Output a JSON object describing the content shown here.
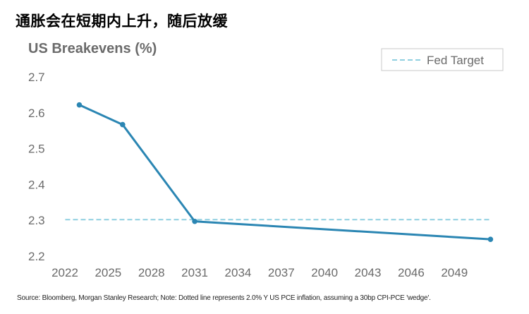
{
  "headline": "通胀会在短期内上升，随后放缓",
  "source_note": "Source: Bloomberg, Morgan Stanley Research; Note: Dotted line represents 2.0% Y US PCE inflation, assuming a 30bp CPI-PCE 'wedge'.",
  "colors": {
    "series": "#2b86b3",
    "fed_target": "#8fcfe0",
    "axis_text": "#6b6b6b",
    "legend_border": "#c8c8c8"
  },
  "chart_data": {
    "type": "line",
    "title": "US Breakevens (%)",
    "xlabel": "",
    "ylabel": "",
    "xlim": [
      2021.8,
      2052
    ],
    "ylim": [
      2.2,
      2.7
    ],
    "grid": false,
    "legend_position": "top-right",
    "x_ticks": [
      "2022",
      "2025",
      "2028",
      "2031",
      "2034",
      "2037",
      "2040",
      "2043",
      "2046",
      "2049"
    ],
    "y_ticks": [
      "2.7",
      "2.6",
      "2.5",
      "2.4",
      "2.3",
      "2.2"
    ],
    "series": [
      {
        "x": [
          2023,
          2026,
          2031,
          2051.5
        ],
        "y": [
          2.62,
          2.565,
          2.295,
          2.245
        ]
      },
      {
        "name": "Fed Target",
        "style": "dashed",
        "x": [
          2023,
          2051.5
        ],
        "y": [
          2.3,
          2.3
        ]
      }
    ]
  }
}
